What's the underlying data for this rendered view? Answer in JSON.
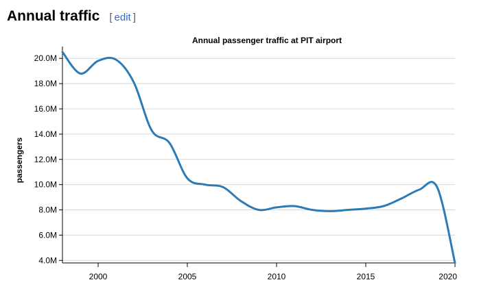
{
  "section": {
    "title": "Annual traffic",
    "edit_open": "[",
    "edit_label": "edit",
    "edit_close": "]",
    "link_color": "#3366cc"
  },
  "chart_data": {
    "type": "line",
    "title": "Annual passenger traffic at PIT airport",
    "xlabel": "",
    "ylabel": "passengers",
    "x": [
      1998,
      1999,
      2000,
      2001,
      2002,
      2003,
      2004,
      2005,
      2006,
      2007,
      2008,
      2009,
      2010,
      2011,
      2012,
      2013,
      2014,
      2015,
      2016,
      2017,
      2018,
      2019,
      2020
    ],
    "series": [
      {
        "name": "",
        "color": "#2c7bb6",
        "values": [
          20.5,
          18.8,
          19.8,
          19.9,
          18.1,
          14.3,
          13.3,
          10.5,
          10.0,
          9.8,
          8.7,
          8.0,
          8.2,
          8.3,
          8.0,
          7.9,
          8.0,
          8.1,
          8.3,
          8.9,
          9.6,
          9.8,
          3.8
        ]
      }
    ],
    "xlim": [
      1998,
      2020
    ],
    "ylim": [
      3.8,
      20.5
    ],
    "x_ticks": [
      2000,
      2005,
      2010,
      2015,
      2020
    ],
    "x_tick_labels": [
      "2000",
      "2005",
      "2010",
      "2015",
      "2020"
    ],
    "y_ticks": [
      4,
      6,
      8,
      10,
      12,
      14,
      16,
      18,
      20
    ],
    "y_tick_labels": [
      "4.0M",
      "6.0M",
      "8.0M",
      "10.0M",
      "12.0M",
      "14.0M",
      "16.0M",
      "18.0M",
      "20.0M"
    ],
    "grid": "horizontal",
    "legend": "none"
  }
}
